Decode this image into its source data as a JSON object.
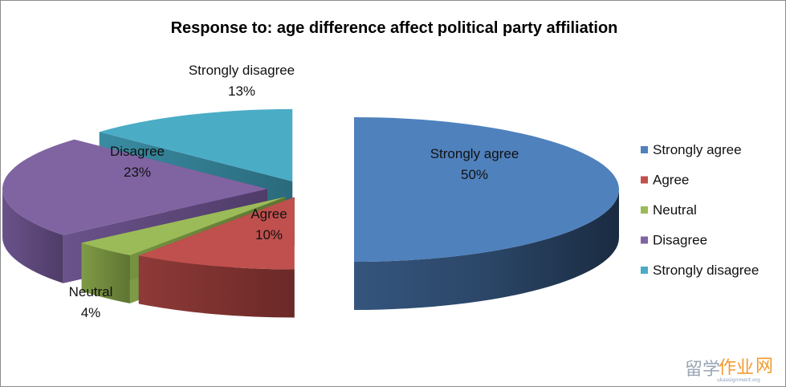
{
  "chart_data": {
    "type": "pie",
    "title": "Response to: age difference affect political party affiliation",
    "categories": [
      "Strongly agree",
      "Agree",
      "Neutral",
      "Disagree",
      "Strongly disagree"
    ],
    "values": [
      50,
      10,
      4,
      23,
      13
    ],
    "value_labels": [
      "50%",
      "10%",
      "4%",
      "23%",
      "13%"
    ],
    "colors": [
      "#4f81bd",
      "#c0504d",
      "#9bbb59",
      "#8064a2",
      "#4bacc6"
    ],
    "style": "3D exploded",
    "legend_position": "right"
  },
  "watermark": {
    "text_cn_1": "留学",
    "text_cn_2": "作业",
    "text_cn_3": "网",
    "text_en": "ukassignment.org"
  }
}
